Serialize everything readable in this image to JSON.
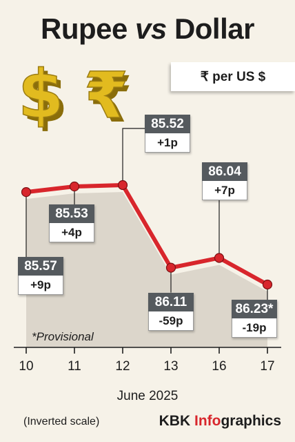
{
  "title": {
    "part1": "Rupee",
    "part2": "vs",
    "part3": "Dollar"
  },
  "unit_label": "₹ per US $",
  "icons": [
    "dollar-icon",
    "rupee-icon"
  ],
  "month_label": "June 2025",
  "scale_note": "(Inverted scale)",
  "provisional_note": "*Provisional",
  "brand": {
    "prefix": "KBK ",
    "highlight": "Info",
    "suffix": "graphics"
  },
  "colors": {
    "line": "#d8262c",
    "value_box": "#555a5e",
    "brand_accent": "#d8262c",
    "icon_gold": "#e2bb1f"
  },
  "chart_data": {
    "type": "line",
    "inverted_y": true,
    "x": [
      "10",
      "11",
      "12",
      "13",
      "16",
      "17"
    ],
    "values": [
      85.57,
      85.53,
      85.52,
      86.11,
      86.04,
      86.23
    ],
    "value_labels": [
      "85.57",
      "85.53",
      "85.52",
      "86.11",
      "86.04",
      "86.23*"
    ],
    "change_labels": [
      "+9p",
      "+4p",
      "+1p",
      "-59p",
      "+7p",
      "-19p"
    ],
    "xlabel": "June 2025",
    "ylabel": "₹ per US $"
  }
}
